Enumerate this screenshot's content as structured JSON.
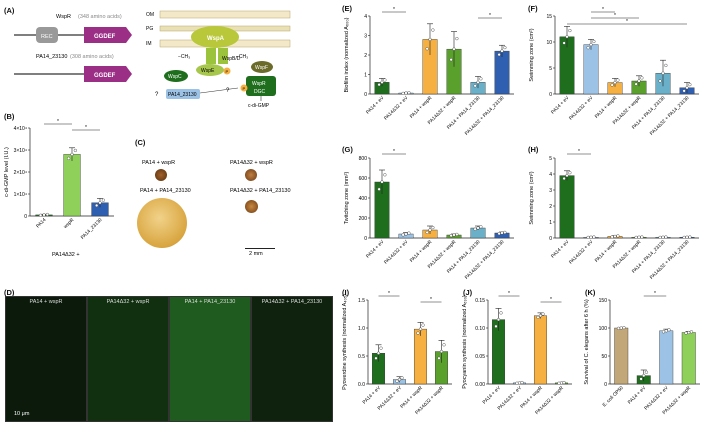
{
  "colors": {
    "dark_green": "#1e6e1e",
    "light_blue": "#9cc3e6",
    "orange": "#f5b041",
    "green": "#5aa02c",
    "teal": "#6ab0c8",
    "blue": "#2f5fb0",
    "tan": "#c2a878",
    "light_green": "#8fd05a",
    "purple": "#9b2f86"
  },
  "panels": {
    "A": {
      "label": "(A)",
      "wspr": "WspR",
      "wspr_size": "(348 amino acids)",
      "pa": "PA14_23130",
      "pa_size": "(308 amino acids)",
      "rec": "REC",
      "ggdef": "GGDEF",
      "om": "OM",
      "pg": "PG",
      "im": "IM",
      "wspa": "WspA",
      "wspbd": "WspB/D",
      "wspe": "WspE",
      "wspc": "WspC",
      "wspf": "WspF",
      "methyl_minus": "−CH₃",
      "methyl_plus": "−CH₃",
      "dgc": "DGC",
      "cdigmp": "c-di-GMP",
      "q1": "?",
      "q2": "?",
      "p": "P"
    },
    "B": {
      "label": "(B)",
      "bottom": "PA14Δ32 +"
    },
    "C": {
      "label": "(C)",
      "t1": "PA14 + wspR",
      "t2": "PA14Δ32 + wspR",
      "t3": "PA14 + PA14_23130",
      "t4": "PA14Δ32 + PA14_23130",
      "scale": "2 mm"
    },
    "D": {
      "label": "(D)",
      "m1": "PA14 + wspR",
      "m2": "PA14Δ32 + wspR",
      "m3": "PA14 + PA14_23130",
      "m4": "PA14Δ32 + PA14_23130",
      "scale": "10 μm"
    },
    "E": {
      "label": "(E)"
    },
    "F": {
      "label": "(F)"
    },
    "G": {
      "label": "(G)"
    },
    "H": {
      "label": "(H)"
    },
    "I": {
      "label": "(I)"
    },
    "J": {
      "label": "(J)"
    },
    "K": {
      "label": "(K)"
    }
  },
  "chart_data": [
    {
      "id": "B",
      "type": "bar",
      "ylabel": "c-di-GMP level (I.U.)",
      "categories": [
        "PA14",
        "wspR",
        "PA14_23130"
      ],
      "values": [
        0.05,
        2.8,
        0.6
      ],
      "errors": [
        0.03,
        0.3,
        0.2
      ],
      "colors": [
        "#1e6e1e",
        "#8fd05a",
        "#2f5fb0"
      ],
      "yticks": [
        "0",
        "1×10⁴",
        "2×10⁴",
        "3×10⁴",
        "4×10⁴"
      ],
      "ylim": [
        0,
        4
      ],
      "sig": [
        [
          0,
          1
        ],
        [
          1,
          2
        ]
      ]
    },
    {
      "id": "E",
      "type": "bar",
      "ylabel": "Biofilm index (normalized A₆₀₀)",
      "categories": [
        "PA14 + eV",
        "PA14Δ32 + eV",
        "PA14 + wspR",
        "PA14Δ32 + wspR",
        "PA14 + PA14_23130",
        "PA14Δ32 + PA14_23130"
      ],
      "values": [
        0.6,
        0.05,
        2.8,
        2.3,
        0.6,
        2.2
      ],
      "errors": [
        0.2,
        0.03,
        0.8,
        0.9,
        0.3,
        0.3
      ],
      "colors": [
        "#1e6e1e",
        "#9cc3e6",
        "#f5b041",
        "#5aa02c",
        "#6ab0c8",
        "#2f5fb0"
      ],
      "yticks": [
        "0",
        "1",
        "2",
        "3",
        "4"
      ],
      "ylim": [
        0,
        4
      ],
      "sig": [
        [
          0,
          1
        ],
        [
          4,
          5
        ]
      ]
    },
    {
      "id": "F",
      "type": "bar",
      "ylabel": "Swimming zone (cm²)",
      "categories": [
        "PA14 + eV",
        "PA14Δ32 + eV",
        "PA14 + wspR",
        "PA14Δ32 + wspR",
        "PA14 + PA14_23130",
        "PA14Δ32 + PA14_23130"
      ],
      "values": [
        11,
        9.5,
        2.2,
        2.5,
        4,
        1.2
      ],
      "errors": [
        2,
        1,
        0.8,
        1,
        2.5,
        1
      ],
      "colors": [
        "#1e6e1e",
        "#9cc3e6",
        "#f5b041",
        "#5aa02c",
        "#6ab0c8",
        "#2f5fb0"
      ],
      "yticks": [
        "0",
        "5",
        "10",
        "15"
      ],
      "ylim": [
        0,
        15
      ],
      "sig": [
        [
          1,
          2
        ],
        [
          1,
          3
        ],
        [
          0,
          5
        ]
      ]
    },
    {
      "id": "G",
      "type": "bar",
      "ylabel": "Twitching zone (mm²)",
      "categories": [
        "PA14 + eV",
        "PA14Δ32 + eV",
        "PA14 + wspR",
        "PA14Δ32 + wspR",
        "PA14 + PA14_23130",
        "PA14Δ32 + PA14_23130"
      ],
      "values": [
        560,
        40,
        80,
        30,
        100,
        50
      ],
      "errors": [
        120,
        15,
        40,
        10,
        20,
        10
      ],
      "colors": [
        "#1e6e1e",
        "#9cc3e6",
        "#f5b041",
        "#5aa02c",
        "#6ab0c8",
        "#2f5fb0"
      ],
      "yticks": [
        "0",
        "200",
        "400",
        "600",
        "800"
      ],
      "ylim": [
        0,
        800
      ],
      "sig": [
        [
          0,
          1
        ]
      ]
    },
    {
      "id": "H",
      "type": "bar",
      "ylabel": "Swimming zone (cm²)",
      "categories": [
        "PA14 + eV",
        "PA14Δ32 + eV",
        "PA14 + wspR",
        "PA14Δ32 + wspR",
        "PA14 + PA14_23130",
        "PA14Δ32 + PA14_23130"
      ],
      "values": [
        3.9,
        0.05,
        0.1,
        0.05,
        0.05,
        0.05
      ],
      "errors": [
        0.3,
        0.02,
        0.05,
        0.02,
        0.02,
        0.02
      ],
      "colors": [
        "#1e6e1e",
        "#9cc3e6",
        "#f5b041",
        "#5aa02c",
        "#6ab0c8",
        "#2f5fb0"
      ],
      "yticks": [
        "0",
        "1",
        "2",
        "3",
        "4",
        "5"
      ],
      "ylim": [
        0,
        5
      ],
      "sig": [
        [
          0,
          1
        ]
      ]
    },
    {
      "id": "I",
      "type": "bar",
      "ylabel": "Pyoverdine synthesis (normalized A₄₀₅)",
      "categories": [
        "PA14 + eV",
        "PA14Δ32 + eV",
        "PA14 + wspR",
        "PA14Δ32 + wspR"
      ],
      "values": [
        0.55,
        0.08,
        0.98,
        0.58
      ],
      "errors": [
        0.15,
        0.05,
        0.12,
        0.2
      ],
      "colors": [
        "#1e6e1e",
        "#9cc3e6",
        "#f5b041",
        "#5aa02c"
      ],
      "yticks": [
        "0.0",
        "0.5",
        "1.0",
        "1.5"
      ],
      "ylim": [
        0,
        1.5
      ],
      "sig": [
        [
          0,
          1
        ],
        [
          2,
          3
        ]
      ]
    },
    {
      "id": "J",
      "type": "bar",
      "ylabel": "Pyocyanin synthesis (normalized A₆₉₀)",
      "categories": [
        "PA14 + eV",
        "PA14Δ32 + eV",
        "PA14 + wspR",
        "PA14Δ32 + wspR"
      ],
      "values": [
        0.115,
        0.002,
        0.122,
        0.002
      ],
      "errors": [
        0.02,
        0.001,
        0.005,
        0.001
      ],
      "colors": [
        "#1e6e1e",
        "#9cc3e6",
        "#f5b041",
        "#5aa02c"
      ],
      "yticks": [
        "0.00",
        "0.05",
        "0.10",
        "0.15"
      ],
      "ylim": [
        0,
        0.15
      ],
      "sig": [
        [
          0,
          1
        ],
        [
          2,
          3
        ]
      ]
    },
    {
      "id": "K",
      "type": "bar",
      "ylabel": "Survival of C. elegans after 6 h (%)",
      "categories": [
        "E. coli OP50",
        "PA14 + eV",
        "PA14Δ32 + eV",
        "PA14Δ32 + wspR"
      ],
      "values": [
        100,
        15,
        95,
        92
      ],
      "errors": [
        1,
        10,
        3,
        2
      ],
      "colors": [
        "#c2a878",
        "#1e6e1e",
        "#9cc3e6",
        "#8fd05a"
      ],
      "yticks": [
        "0",
        "50",
        "100",
        "150"
      ],
      "ylim": [
        0,
        150
      ],
      "sig": [
        [
          1,
          2
        ]
      ]
    }
  ]
}
